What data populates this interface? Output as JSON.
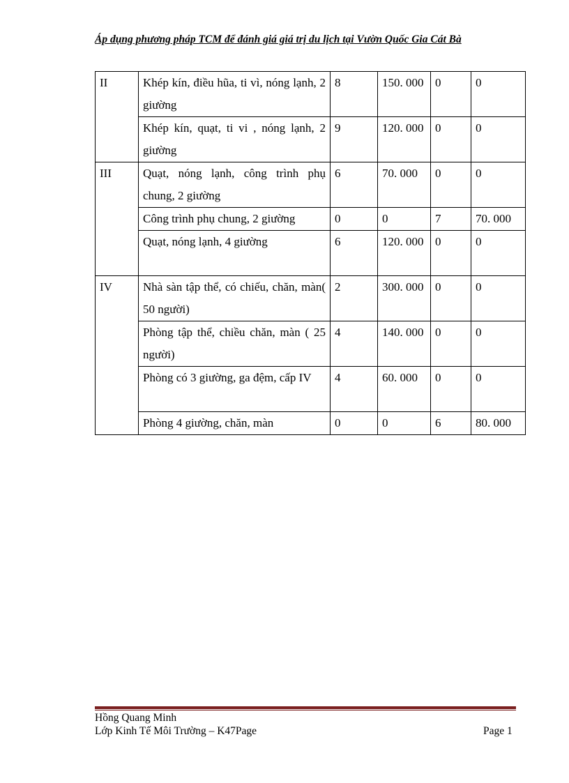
{
  "header": {
    "title": "Áp dụng phương pháp TCM để đánh giá giá trị du lịch  tại Vườn Quốc Gia Cát Bà"
  },
  "table": {
    "groups": [
      {
        "label": "II",
        "rows": [
          [
            "Khép kín, điều hũa, ti vì, nóng lạnh, 2 giường",
            "8",
            "150. 000",
            "0",
            "0"
          ],
          [
            "Khép kín, quạt, ti vi , nóng lạnh, 2 giường",
            "9",
            "120. 000",
            "0",
            "0"
          ]
        ]
      },
      {
        "label": "III",
        "rows": [
          [
            "Quạt, nóng lạnh, công trình phụ chung, 2 giường",
            "6",
            "70. 000",
            "0",
            "0"
          ],
          [
            "Công trình phụ chung, 2 giường",
            "0",
            "0",
            "7",
            "70. 000"
          ],
          [
            "Quạt, nóng lạnh, 4 giường",
            "6",
            "120. 000",
            "0",
            "0"
          ]
        ]
      },
      {
        "label": "IV",
        "rows": [
          [
            "Nhà sàn tập thể, có chiếu, chăn, màn( 50 người)",
            "2",
            "300. 000",
            "0",
            "0"
          ],
          [
            "Phòng tập thể, chiều chăn, màn ( 25 người)",
            "4",
            "140. 000",
            "0",
            "0"
          ],
          [
            "Phòng có 3 giường, ga đệm, cấp IV",
            "4",
            "60. 000",
            "0",
            "0"
          ],
          [
            "Phòng 4 giường,  chăn, màn",
            "0",
            "0",
            "6",
            "80. 000"
          ]
        ]
      }
    ]
  },
  "footer": {
    "author": "Hồng Quang Minh",
    "class": "Lớp Kinh Tế Môi Trường – K47Page",
    "page": "Page 1",
    "rule_color": "#7a1f1f"
  }
}
